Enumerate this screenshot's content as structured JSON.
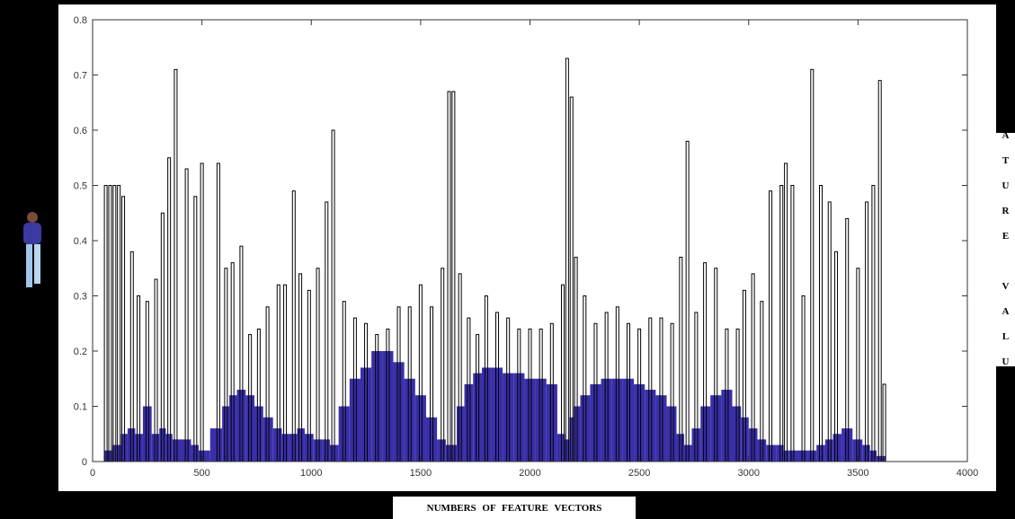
{
  "chart_data": {
    "type": "bar",
    "x_label": "NUMBERS OF FEATURE VECTORS",
    "y_label": "F E A T U R E   V A L U E S",
    "xlim": [
      0,
      4000
    ],
    "xticks": [
      0,
      500,
      1000,
      1500,
      2000,
      2500,
      3000,
      3500,
      4000
    ],
    "ylim": [
      0,
      0.8
    ],
    "yticks": [
      0,
      0.1,
      0.2,
      0.3,
      0.4,
      0.5,
      0.6,
      0.7,
      0.8
    ],
    "x": [
      60,
      80,
      100,
      120,
      140,
      180,
      210,
      250,
      290,
      320,
      350,
      380,
      430,
      470,
      500,
      575,
      610,
      640,
      680,
      720,
      760,
      800,
      850,
      880,
      920,
      950,
      990,
      1030,
      1070,
      1100,
      1150,
      1200,
      1250,
      1300,
      1350,
      1400,
      1450,
      1500,
      1550,
      1600,
      1630,
      1650,
      1680,
      1720,
      1760,
      1800,
      1850,
      1900,
      1950,
      2000,
      2050,
      2100,
      2150,
      2170,
      2190,
      2210,
      2250,
      2300,
      2350,
      2400,
      2450,
      2500,
      2550,
      2600,
      2650,
      2690,
      2720,
      2760,
      2800,
      2850,
      2900,
      2950,
      2980,
      3020,
      3060,
      3100,
      3150,
      3170,
      3200,
      3250,
      3290,
      3330,
      3370,
      3400,
      3450,
      3500,
      3540,
      3570,
      3600,
      3620
    ],
    "series": [
      {
        "color": "#3a2fa8",
        "values": [
          0.02,
          0.02,
          0.03,
          0.03,
          0.05,
          0.06,
          0.05,
          0.1,
          0.05,
          0.06,
          0.05,
          0.04,
          0.04,
          0.03,
          0.02,
          0.06,
          0.1,
          0.12,
          0.13,
          0.12,
          0.1,
          0.08,
          0.06,
          0.05,
          0.05,
          0.06,
          0.05,
          0.04,
          0.04,
          0.03,
          0.1,
          0.15,
          0.17,
          0.2,
          0.2,
          0.18,
          0.15,
          0.12,
          0.08,
          0.04,
          0.03,
          0.03,
          0.1,
          0.14,
          0.16,
          0.17,
          0.17,
          0.16,
          0.16,
          0.15,
          0.15,
          0.14,
          0.05,
          0.04,
          0.08,
          0.1,
          0.12,
          0.14,
          0.15,
          0.15,
          0.15,
          0.14,
          0.13,
          0.12,
          0.1,
          0.05,
          0.03,
          0.06,
          0.1,
          0.12,
          0.13,
          0.1,
          0.08,
          0.06,
          0.04,
          0.03,
          0.03,
          0.02,
          0.02,
          0.02,
          0.02,
          0.03,
          0.04,
          0.05,
          0.06,
          0.04,
          0.03,
          0.02,
          0.01,
          0.01
        ]
      },
      {
        "color": "#000000",
        "values": [
          0.5,
          0.5,
          0.5,
          0.5,
          0.48,
          0.38,
          0.3,
          0.29,
          0.33,
          0.45,
          0.55,
          0.71,
          0.53,
          0.48,
          0.54,
          0.54,
          0.35,
          0.36,
          0.39,
          0.23,
          0.24,
          0.28,
          0.32,
          0.32,
          0.49,
          0.34,
          0.31,
          0.35,
          0.47,
          0.6,
          0.29,
          0.26,
          0.25,
          0.23,
          0.24,
          0.28,
          0.28,
          0.32,
          0.28,
          0.35,
          0.67,
          0.67,
          0.34,
          0.26,
          0.23,
          0.3,
          0.27,
          0.26,
          0.24,
          0.24,
          0.24,
          0.25,
          0.32,
          0.73,
          0.66,
          0.37,
          0.3,
          0.25,
          0.27,
          0.28,
          0.25,
          0.24,
          0.26,
          0.26,
          0.25,
          0.37,
          0.58,
          0.27,
          0.36,
          0.35,
          0.24,
          0.24,
          0.31,
          0.34,
          0.29,
          0.49,
          0.5,
          0.54,
          0.5,
          0.3,
          0.71,
          0.5,
          0.47,
          0.38,
          0.44,
          0.35,
          0.47,
          0.5,
          0.69,
          0.14
        ]
      }
    ]
  }
}
